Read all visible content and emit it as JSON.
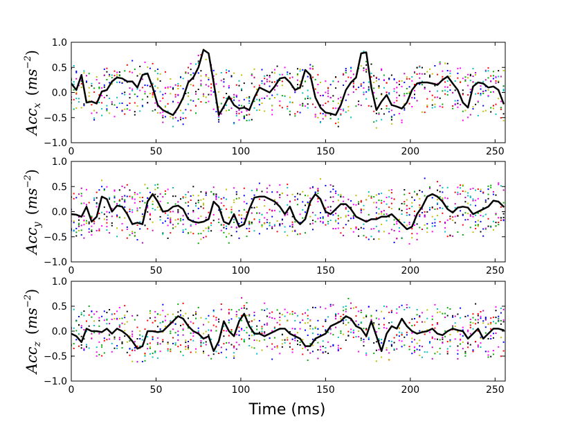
{
  "figure": {
    "xlabel": "Time (ms)"
  },
  "chart_data": [
    {
      "type": "line",
      "name": "acc-x",
      "ylabel_base": "Acc",
      "ylabel_sub": "x",
      "ylabel_unit_open": "(",
      "ylabel_unit_base": "ms",
      "ylabel_unit_sup": "−2",
      "ylabel_unit_close": ")",
      "xlim": [
        0,
        256
      ],
      "ylim": [
        -1.0,
        1.0
      ],
      "xticks": [
        0,
        50,
        100,
        150,
        200,
        250
      ],
      "xtick_labels": [
        "0",
        "50",
        "100",
        "150",
        "200",
        "250"
      ],
      "yticks": [
        -1.0,
        -0.5,
        0.0,
        0.5,
        1.0
      ],
      "ytick_labels": [
        "−1.0",
        "−0.5",
        "0.0",
        "0.5",
        "1.0"
      ],
      "mean_series": {
        "name": "mean",
        "color": "#000000",
        "x": [
          0,
          3,
          6,
          9,
          12,
          15,
          18,
          21,
          24,
          27,
          30,
          33,
          36,
          39,
          42,
          45,
          48,
          51,
          54,
          57,
          60,
          63,
          66,
          69,
          72,
          75,
          78,
          81,
          84,
          87,
          90,
          93,
          96,
          99,
          102,
          105,
          108,
          111,
          114,
          117,
          120,
          123,
          126,
          129,
          132,
          135,
          138,
          141,
          144,
          147,
          150,
          153,
          156,
          159,
          162,
          165,
          168,
          171,
          174,
          177,
          180,
          183,
          186,
          189,
          192,
          195,
          198,
          201,
          204,
          207,
          210,
          213,
          216,
          219,
          222,
          225,
          228,
          231,
          234,
          237,
          240,
          243,
          246,
          249,
          252,
          255
        ],
        "y": [
          0.18,
          0.05,
          0.35,
          -0.2,
          -0.18,
          -0.22,
          0.02,
          0.05,
          0.22,
          0.3,
          0.28,
          0.22,
          0.22,
          0.1,
          0.35,
          0.38,
          0.1,
          -0.25,
          -0.35,
          -0.4,
          -0.45,
          -0.3,
          -0.1,
          0.2,
          0.3,
          0.5,
          0.85,
          0.78,
          0.2,
          -0.45,
          -0.28,
          -0.08,
          -0.25,
          -0.32,
          -0.3,
          -0.35,
          -0.1,
          0.1,
          0.05,
          0.0,
          0.12,
          0.28,
          0.3,
          0.2,
          0.05,
          0.1,
          0.45,
          0.35,
          -0.1,
          -0.3,
          -0.4,
          -0.42,
          -0.45,
          -0.25,
          0.05,
          0.2,
          0.3,
          0.78,
          0.8,
          0.1,
          -0.35,
          -0.18,
          -0.05,
          -0.25,
          -0.28,
          -0.32,
          -0.2,
          0.05,
          0.18,
          0.2,
          0.2,
          0.18,
          0.15,
          0.25,
          0.32,
          0.18,
          0.05,
          -0.2,
          -0.3,
          0.12,
          0.2,
          0.18,
          0.1,
          0.12,
          0.05,
          -0.22
        ]
      }
    },
    {
      "type": "line",
      "name": "acc-y",
      "ylabel_base": "Acc",
      "ylabel_sub": "y",
      "ylabel_unit_open": "(",
      "ylabel_unit_base": "ms",
      "ylabel_unit_sup": "−2",
      "ylabel_unit_close": ")",
      "xlim": [
        0,
        256
      ],
      "ylim": [
        -1.0,
        1.0
      ],
      "xticks": [
        0,
        50,
        100,
        150,
        200,
        250
      ],
      "xtick_labels": [
        "0",
        "50",
        "100",
        "150",
        "200",
        "250"
      ],
      "yticks": [
        -1.0,
        -0.5,
        0.0,
        0.5,
        1.0
      ],
      "ytick_labels": [
        "−1.0",
        "−0.5",
        "0.0",
        "0.5",
        "1.0"
      ],
      "mean_series": {
        "name": "mean",
        "color": "#000000",
        "x": [
          0,
          3,
          6,
          9,
          12,
          15,
          18,
          21,
          24,
          27,
          30,
          33,
          36,
          39,
          42,
          45,
          48,
          51,
          54,
          57,
          60,
          63,
          66,
          69,
          72,
          75,
          78,
          81,
          84,
          87,
          90,
          93,
          96,
          99,
          102,
          105,
          108,
          111,
          114,
          117,
          120,
          123,
          126,
          129,
          132,
          135,
          138,
          141,
          144,
          147,
          150,
          153,
          156,
          159,
          162,
          165,
          168,
          171,
          174,
          177,
          180,
          183,
          186,
          189,
          192,
          195,
          198,
          201,
          204,
          207,
          210,
          213,
          216,
          219,
          222,
          225,
          228,
          231,
          234,
          237,
          240,
          243,
          246,
          249,
          252,
          255
        ],
        "y": [
          -0.05,
          -0.06,
          -0.1,
          0.1,
          -0.2,
          -0.1,
          0.3,
          0.25,
          0.0,
          0.12,
          0.1,
          -0.05,
          -0.25,
          -0.22,
          -0.25,
          0.2,
          0.35,
          0.2,
          0.0,
          0.02,
          0.1,
          0.12,
          0.05,
          -0.15,
          -0.2,
          -0.22,
          -0.2,
          -0.15,
          0.2,
          0.1,
          -0.2,
          -0.25,
          -0.05,
          -0.3,
          -0.25,
          0.05,
          0.28,
          0.3,
          0.3,
          0.25,
          0.2,
          0.1,
          -0.05,
          0.1,
          -0.15,
          -0.25,
          -0.15,
          0.2,
          0.35,
          0.25,
          0.0,
          -0.05,
          0.05,
          0.15,
          0.15,
          0.05,
          -0.1,
          -0.15,
          -0.2,
          -0.15,
          -0.15,
          -0.1,
          -0.1,
          -0.05,
          -0.15,
          -0.25,
          -0.35,
          -0.3,
          -0.05,
          0.1,
          0.3,
          0.35,
          0.3,
          0.2,
          0.05,
          -0.02,
          0.08,
          0.1,
          0.08,
          -0.05,
          0.0,
          0.05,
          0.1,
          0.22,
          0.2,
          0.1
        ]
      }
    },
    {
      "type": "line",
      "name": "acc-z",
      "ylabel_base": "Acc",
      "ylabel_sub": "z",
      "ylabel_unit_open": "(",
      "ylabel_unit_base": "ms",
      "ylabel_unit_sup": "−2",
      "ylabel_unit_close": ")",
      "xlim": [
        0,
        256
      ],
      "ylim": [
        -1.0,
        1.0
      ],
      "xticks": [
        0,
        50,
        100,
        150,
        200,
        250
      ],
      "xtick_labels": [
        "0",
        "50",
        "100",
        "150",
        "200",
        "250"
      ],
      "yticks": [
        -1.0,
        -0.5,
        0.0,
        0.5,
        1.0
      ],
      "ytick_labels": [
        "−1.0",
        "−0.5",
        "0.0",
        "0.5",
        "1.0"
      ],
      "mean_series": {
        "name": "mean",
        "color": "#000000",
        "x": [
          0,
          3,
          6,
          9,
          12,
          15,
          18,
          21,
          24,
          27,
          30,
          33,
          36,
          39,
          42,
          45,
          48,
          51,
          54,
          57,
          60,
          63,
          66,
          69,
          72,
          75,
          78,
          81,
          84,
          87,
          90,
          93,
          96,
          99,
          102,
          105,
          108,
          111,
          114,
          117,
          120,
          123,
          126,
          129,
          132,
          135,
          138,
          141,
          144,
          147,
          150,
          153,
          156,
          159,
          162,
          165,
          168,
          171,
          174,
          177,
          180,
          183,
          186,
          189,
          192,
          195,
          198,
          201,
          204,
          207,
          210,
          213,
          216,
          219,
          222,
          225,
          228,
          231,
          234,
          237,
          240,
          243,
          246,
          249,
          252,
          255
        ],
        "y": [
          -0.05,
          -0.1,
          -0.22,
          0.05,
          0.0,
          0.0,
          -0.02,
          0.05,
          -0.05,
          0.05,
          0.0,
          -0.08,
          -0.2,
          -0.35,
          -0.3,
          0.0,
          0.0,
          -0.02,
          0.0,
          0.1,
          0.2,
          0.3,
          0.25,
          0.1,
          0.0,
          -0.05,
          -0.15,
          -0.1,
          -0.4,
          -0.2,
          0.2,
          0.0,
          -0.1,
          0.2,
          0.35,
          0.1,
          -0.05,
          -0.05,
          -0.1,
          -0.05,
          0.0,
          0.05,
          0.05,
          -0.05,
          -0.1,
          -0.15,
          -0.3,
          -0.3,
          -0.15,
          -0.1,
          -0.05,
          0.1,
          0.15,
          0.2,
          0.3,
          0.25,
          0.1,
          0.05,
          -0.1,
          0.2,
          -0.1,
          -0.4,
          -0.05,
          0.1,
          0.05,
          0.25,
          0.1,
          0.0,
          -0.05,
          -0.02,
          0.0,
          0.05,
          -0.05,
          -0.08,
          0.0,
          0.05,
          0.02,
          0.0,
          -0.15,
          -0.05,
          0.05,
          -0.15,
          -0.05,
          0.05,
          0.05,
          0.02
        ]
      }
    }
  ]
}
